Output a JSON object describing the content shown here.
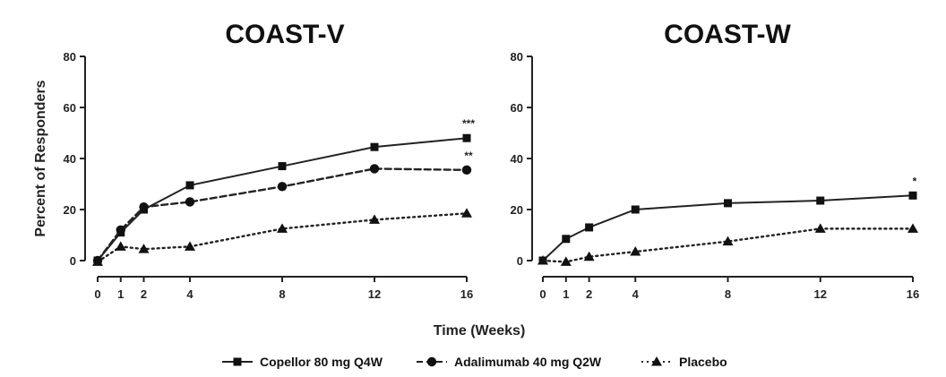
{
  "chart_data": [
    {
      "type": "line",
      "title": "COAST-V",
      "ylabel": "Percent of Responders",
      "xlabel": "Time (Weeks)",
      "ylim": [
        0,
        80
      ],
      "yticks": [
        0,
        20,
        40,
        60,
        80
      ],
      "xticks": [
        0,
        1,
        2,
        4,
        8,
        12,
        16
      ],
      "series": [
        {
          "name": "Copellor 80 mg Q4W",
          "marker": "square",
          "line": "solid",
          "x": [
            0,
            1,
            2,
            4,
            8,
            12,
            16
          ],
          "values": [
            0,
            11,
            20,
            29.5,
            37,
            44.5,
            48
          ],
          "end_annotation": "***"
        },
        {
          "name": "Adalimumab 40 mg Q2W",
          "marker": "circle",
          "line": "dashed",
          "x": [
            0,
            1,
            2,
            4,
            8,
            12,
            16
          ],
          "values": [
            0,
            12,
            21,
            23,
            29,
            36,
            35.5
          ],
          "end_annotation": "**"
        },
        {
          "name": "Placebo",
          "marker": "triangle",
          "line": "dotted",
          "x": [
            0,
            1,
            2,
            4,
            8,
            12,
            16
          ],
          "values": [
            -0.5,
            5.5,
            4.5,
            5.5,
            12.5,
            16,
            18.5
          ]
        }
      ]
    },
    {
      "type": "line",
      "title": "COAST-W",
      "xlabel": "Time (Weeks)",
      "ylim": [
        0,
        80
      ],
      "yticks": [
        0,
        20,
        40,
        60,
        80
      ],
      "xticks": [
        0,
        1,
        2,
        4,
        8,
        12,
        16
      ],
      "series": [
        {
          "name": "Copellor 80 mg Q4W",
          "marker": "square",
          "line": "solid",
          "x": [
            0,
            1,
            2,
            4,
            8,
            12,
            16
          ],
          "values": [
            0,
            8.5,
            13,
            20,
            22.5,
            23.5,
            25.5
          ],
          "end_annotation": "*"
        },
        {
          "name": "Placebo",
          "marker": "triangle",
          "line": "dotted",
          "x": [
            0,
            1,
            2,
            4,
            8,
            12,
            16
          ],
          "values": [
            0,
            -0.5,
            1.5,
            3.5,
            7.5,
            12.5,
            12.5
          ]
        }
      ]
    }
  ],
  "legend": {
    "position": "bottom-center",
    "items": [
      {
        "label": "Copellor 80 mg Q4W",
        "marker": "square",
        "line": "solid"
      },
      {
        "label": "Adalimumab 40 mg Q2W",
        "marker": "circle",
        "line": "dashed"
      },
      {
        "label": "Placebo",
        "marker": "triangle",
        "line": "dotted"
      }
    ]
  },
  "shared_xlabel": "Time (Weeks)"
}
